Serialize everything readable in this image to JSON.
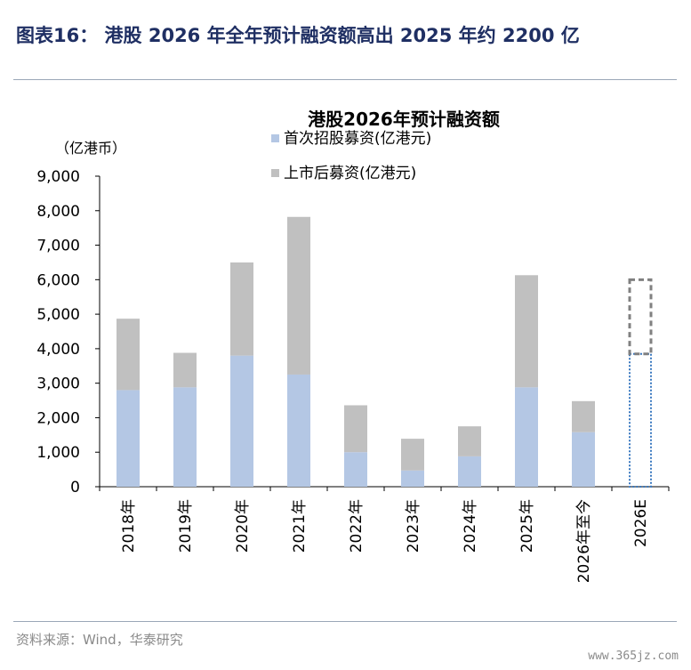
{
  "figure": {
    "title": "图表16：  港股 2026 年全年预计融资额高出 2025 年约 2200 亿",
    "source": "资料来源：Wind，华泰研究",
    "watermark": "www.365jz.com"
  },
  "chart_data": {
    "type": "bar",
    "stacked": true,
    "title": "港股2026年预计融资额",
    "unit_label": "（亿港币）",
    "categories": [
      "2018年",
      "2019年",
      "2020年",
      "2021年",
      "2022年",
      "2023年",
      "2024年",
      "2025年",
      "2026年至今",
      "2026E"
    ],
    "series": [
      {
        "name": "首次招股募资(亿港元)",
        "color": "#b4c7e4",
        "values": [
          2800,
          2880,
          3800,
          3250,
          1000,
          470,
          880,
          2880,
          1580,
          3850
        ]
      },
      {
        "name": "上市后募资(亿港元)",
        "color": "#c0c0c0",
        "values": [
          2070,
          1000,
          2700,
          4570,
          1360,
          920,
          870,
          3250,
          900,
          2150
        ]
      }
    ],
    "estimated_category": "2026E",
    "estimated_series_colors": [
      "#3a79c0",
      "#808080"
    ],
    "yticks": [
      "0",
      "1,000",
      "2,000",
      "3,000",
      "4,000",
      "5,000",
      "6,000",
      "7,000",
      "8,000",
      "9,000"
    ],
    "ylim": [
      0,
      9000
    ],
    "legend_position": "top-center",
    "grid": false
  }
}
